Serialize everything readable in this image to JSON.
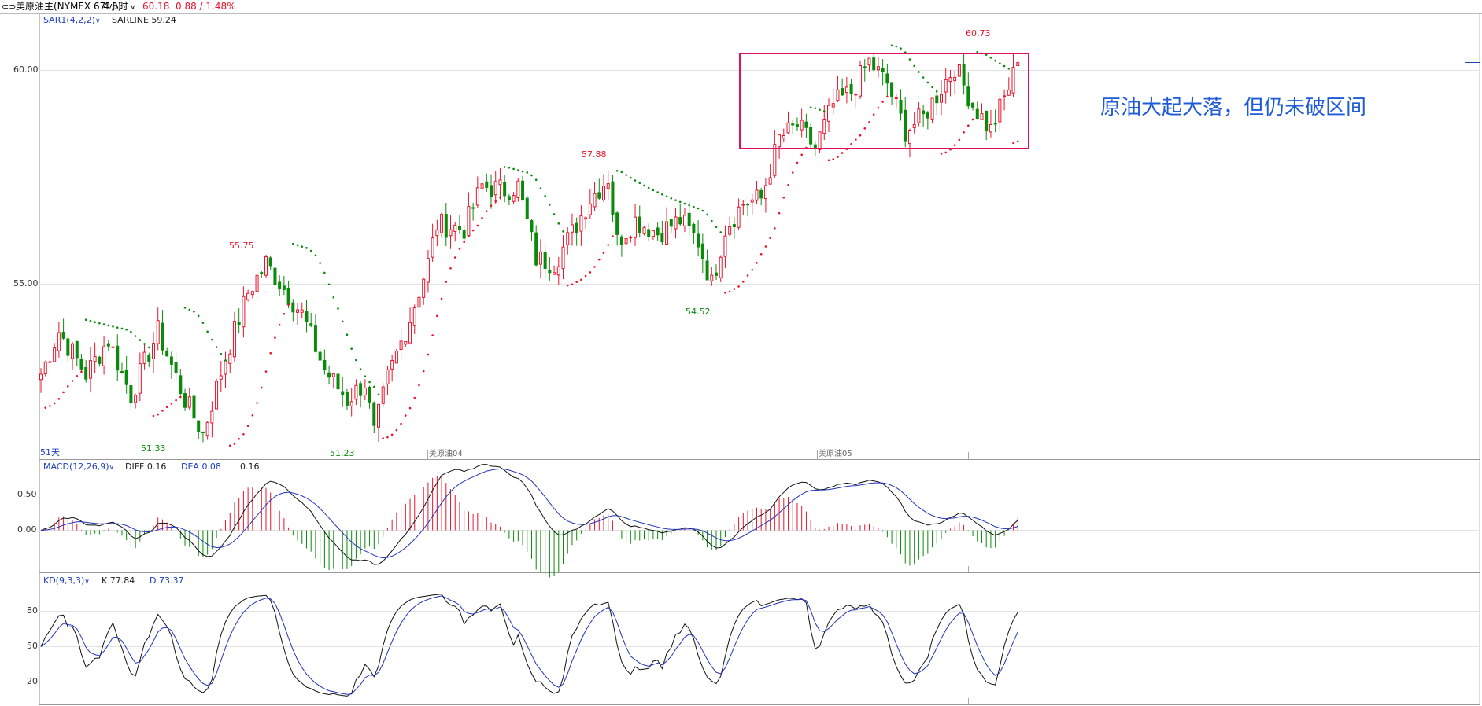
{
  "header": {
    "icon": "link-icon",
    "symbol": "美原油主(NYMEX 6713)",
    "period": "4小时",
    "price": "60.18",
    "change": "0.88 / 1.48%",
    "color_up": "#e8132b"
  },
  "main_panel": {
    "indicator_name": "SAR1(4,2,2)",
    "indicator_value": "SARLINE 59.24",
    "y_ticks": [
      "60.00",
      "55.00"
    ],
    "session_labels": [
      "51天",
      "美原油04",
      "美原油05"
    ],
    "price_labels": [
      {
        "text": "55.75",
        "kind": "high"
      },
      {
        "text": "51.33",
        "kind": "low"
      },
      {
        "text": "51.23",
        "kind": "low"
      },
      {
        "text": "57.88",
        "kind": "high"
      },
      {
        "text": "54.52",
        "kind": "low"
      },
      {
        "text": "60.73",
        "kind": "high"
      }
    ],
    "annotation": "原油大起大落，但仍未破区间",
    "colors": {
      "up": "#e8132b",
      "down": "#0a8a0a",
      "box": "#e0105e",
      "annotation": "#1f5bd6"
    }
  },
  "macd_panel": {
    "name": "MACD(12,26,9)",
    "diff": "DIFF 0.16",
    "dea": "DEA 0.08",
    "value": "0.16",
    "y_ticks": [
      "0.50",
      "0.00"
    ]
  },
  "kd_panel": {
    "name": "KD(9,3,3)",
    "k": "K 77.84",
    "d": "D 73.37",
    "y_ticks": [
      "80",
      "50",
      "20"
    ]
  },
  "chart_data": [
    {
      "type": "candlestick",
      "title": "美原油主(NYMEX 6713) 4小时",
      "y_ticks": [
        60.0,
        55.0
      ],
      "ylim": [
        51.0,
        61.2
      ],
      "marked_levels": {
        "high_1": 55.75,
        "low_1": 51.33,
        "low_2": 51.23,
        "high_2": 57.88,
        "low_3": 54.52,
        "high_3": 60.73
      },
      "last_price": 60.18,
      "sar": 59.24,
      "price_path": [
        {
          "x": 0,
          "y": 52.9
        },
        {
          "x": 4,
          "y": 53.9
        },
        {
          "x": 10,
          "y": 52.9
        },
        {
          "x": 15,
          "y": 53.7
        },
        {
          "x": 20,
          "y": 52.4
        },
        {
          "x": 26,
          "y": 53.9
        },
        {
          "x": 32,
          "y": 52.3
        },
        {
          "x": 36,
          "y": 51.5
        },
        {
          "x": 41,
          "y": 53.3
        },
        {
          "x": 46,
          "y": 54.8
        },
        {
          "x": 50,
          "y": 55.5
        },
        {
          "x": 54,
          "y": 54.9
        },
        {
          "x": 58,
          "y": 54.3
        },
        {
          "x": 63,
          "y": 53.0
        },
        {
          "x": 68,
          "y": 52.3
        },
        {
          "x": 72,
          "y": 52.7
        },
        {
          "x": 74,
          "y": 51.5
        },
        {
          "x": 77,
          "y": 52.8
        },
        {
          "x": 82,
          "y": 54.2
        },
        {
          "x": 86,
          "y": 55.5
        },
        {
          "x": 88,
          "y": 56.4
        },
        {
          "x": 94,
          "y": 56.3
        },
        {
          "x": 98,
          "y": 57.3
        },
        {
          "x": 103,
          "y": 57.2
        },
        {
          "x": 106,
          "y": 57.3
        },
        {
          "x": 110,
          "y": 55.6
        },
        {
          "x": 114,
          "y": 55.5
        },
        {
          "x": 118,
          "y": 56.2
        },
        {
          "x": 122,
          "y": 57.0
        },
        {
          "x": 126,
          "y": 57.5
        },
        {
          "x": 128,
          "y": 56.0
        },
        {
          "x": 132,
          "y": 56.5
        },
        {
          "x": 137,
          "y": 56.2
        },
        {
          "x": 142,
          "y": 56.5
        },
        {
          "x": 146,
          "y": 56.0
        },
        {
          "x": 149,
          "y": 55.0
        },
        {
          "x": 152,
          "y": 56.3
        },
        {
          "x": 156,
          "y": 56.9
        },
        {
          "x": 160,
          "y": 57.0
        },
        {
          "x": 164,
          "y": 58.4
        },
        {
          "x": 168,
          "y": 58.7
        },
        {
          "x": 172,
          "y": 58.2
        },
        {
          "x": 176,
          "y": 59.2
        },
        {
          "x": 180,
          "y": 59.5
        },
        {
          "x": 184,
          "y": 60.2
        },
        {
          "x": 188,
          "y": 59.7
        },
        {
          "x": 192,
          "y": 58.6
        },
        {
          "x": 196,
          "y": 58.9
        },
        {
          "x": 200,
          "y": 59.6
        },
        {
          "x": 203,
          "y": 60.1
        },
        {
          "x": 207,
          "y": 59.2
        },
        {
          "x": 211,
          "y": 58.6
        },
        {
          "x": 215,
          "y": 59.6
        },
        {
          "x": 217,
          "y": 60.18
        }
      ]
    },
    {
      "type": "line",
      "title": "MACD(12,26,9)",
      "series": [
        {
          "name": "DIFF",
          "values": [
            0.16
          ]
        },
        {
          "name": "DEA",
          "values": [
            0.08
          ]
        }
      ],
      "y_ticks": [
        0.5,
        0.0
      ],
      "ylim": [
        -0.55,
        0.75
      ]
    },
    {
      "type": "line",
      "title": "KD(9,3,3)",
      "series": [
        {
          "name": "K",
          "values": [
            77.84
          ]
        },
        {
          "name": "D",
          "values": [
            73.37
          ]
        }
      ],
      "y_ticks": [
        80,
        50,
        20
      ],
      "ylim": [
        0,
        100
      ]
    }
  ]
}
